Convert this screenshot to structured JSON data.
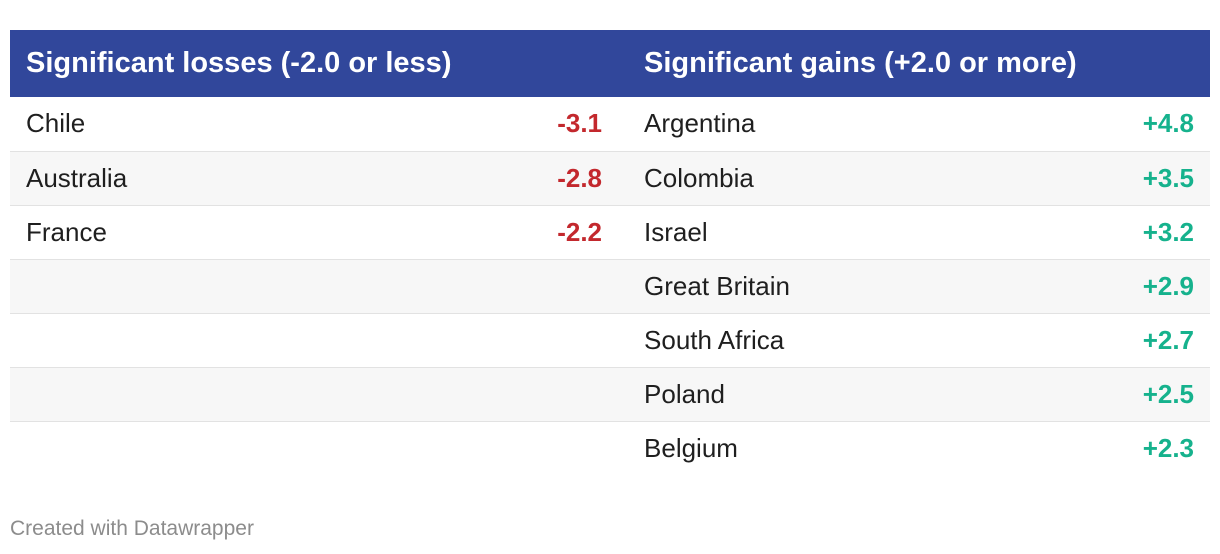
{
  "header": {
    "losses_title": "Significant losses (-2.0 or less)",
    "gains_title": "Significant gains (+2.0 or more)"
  },
  "rows": [
    {
      "loss_country": "Chile",
      "loss_value": "-3.1",
      "gain_country": "Argentina",
      "gain_value": "+4.8"
    },
    {
      "loss_country": "Australia",
      "loss_value": "-2.8",
      "gain_country": "Colombia",
      "gain_value": "+3.5"
    },
    {
      "loss_country": "France",
      "loss_value": "-2.2",
      "gain_country": "Israel",
      "gain_value": "+3.2"
    },
    {
      "loss_country": "",
      "loss_value": "",
      "gain_country": "Great Britain",
      "gain_value": "+2.9"
    },
    {
      "loss_country": "",
      "loss_value": "",
      "gain_country": "South Africa",
      "gain_value": "+2.7"
    },
    {
      "loss_country": "",
      "loss_value": "",
      "gain_country": "Poland",
      "gain_value": "+2.5"
    },
    {
      "loss_country": "",
      "loss_value": "",
      "gain_country": "Belgium",
      "gain_value": "+2.3"
    }
  ],
  "colors": {
    "header_bg": "#31479b",
    "loss": "#c3282d",
    "gain": "#16b28d"
  },
  "footer": {
    "credit": "Created with Datawrapper"
  },
  "chart_data": {
    "type": "table",
    "columns": [
      "Significant losses (-2.0 or less)",
      "",
      "Significant gains (+2.0 or more)",
      ""
    ],
    "losses": [
      {
        "country": "Chile",
        "value": -3.1
      },
      {
        "country": "Australia",
        "value": -2.8
      },
      {
        "country": "France",
        "value": -2.2
      }
    ],
    "gains": [
      {
        "country": "Argentina",
        "value": 4.8
      },
      {
        "country": "Colombia",
        "value": 3.5
      },
      {
        "country": "Israel",
        "value": 3.2
      },
      {
        "country": "Great Britain",
        "value": 2.9
      },
      {
        "country": "South Africa",
        "value": 2.7
      },
      {
        "country": "Poland",
        "value": 2.5
      },
      {
        "country": "Belgium",
        "value": 2.3
      }
    ]
  }
}
